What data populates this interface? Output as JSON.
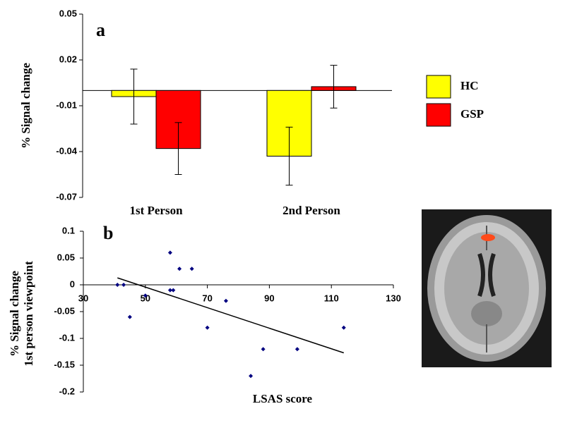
{
  "chart_data": [
    {
      "type": "bar",
      "panel": "a",
      "ylabel": "% Signal change",
      "categories": [
        "1st Person",
        "2nd Person"
      ],
      "series": [
        {
          "name": "HC",
          "color": "#ffff00",
          "values": [
            -0.004,
            -0.043
          ],
          "errors": [
            0.018,
            0.019
          ]
        },
        {
          "name": "GSP",
          "color": "#ff0000",
          "values": [
            -0.038,
            0.0025
          ],
          "errors": [
            0.017,
            0.014
          ]
        }
      ],
      "ylim": [
        -0.07,
        0.05
      ],
      "yticks": [
        0.05,
        0.02,
        -0.01,
        -0.04,
        -0.07
      ]
    },
    {
      "type": "scatter",
      "panel": "b",
      "ylabel": [
        "% Signal change",
        "1st person viewpoint"
      ],
      "xlabel": "LSAS score",
      "x": [
        41,
        43,
        45,
        50,
        58,
        58,
        59,
        61,
        65,
        70,
        76,
        84,
        88,
        99,
        114
      ],
      "values": [
        0,
        0,
        -0.06,
        -0.02,
        0.06,
        -0.01,
        -0.01,
        0.03,
        0.03,
        -0.08,
        -0.03,
        -0.17,
        -0.12,
        -0.12,
        -0.08
      ],
      "color": "#000080",
      "trendline": {
        "x": [
          41,
          114
        ],
        "values": [
          0.013,
          -0.127
        ]
      },
      "xlim": [
        30,
        130
      ],
      "xticks": [
        30,
        50,
        70,
        90,
        110,
        130
      ],
      "ylim": [
        -0.2,
        0.1
      ],
      "yticks": [
        0.1,
        0.05,
        0,
        -0.05,
        -0.1,
        -0.15,
        -0.2
      ]
    }
  ]
}
